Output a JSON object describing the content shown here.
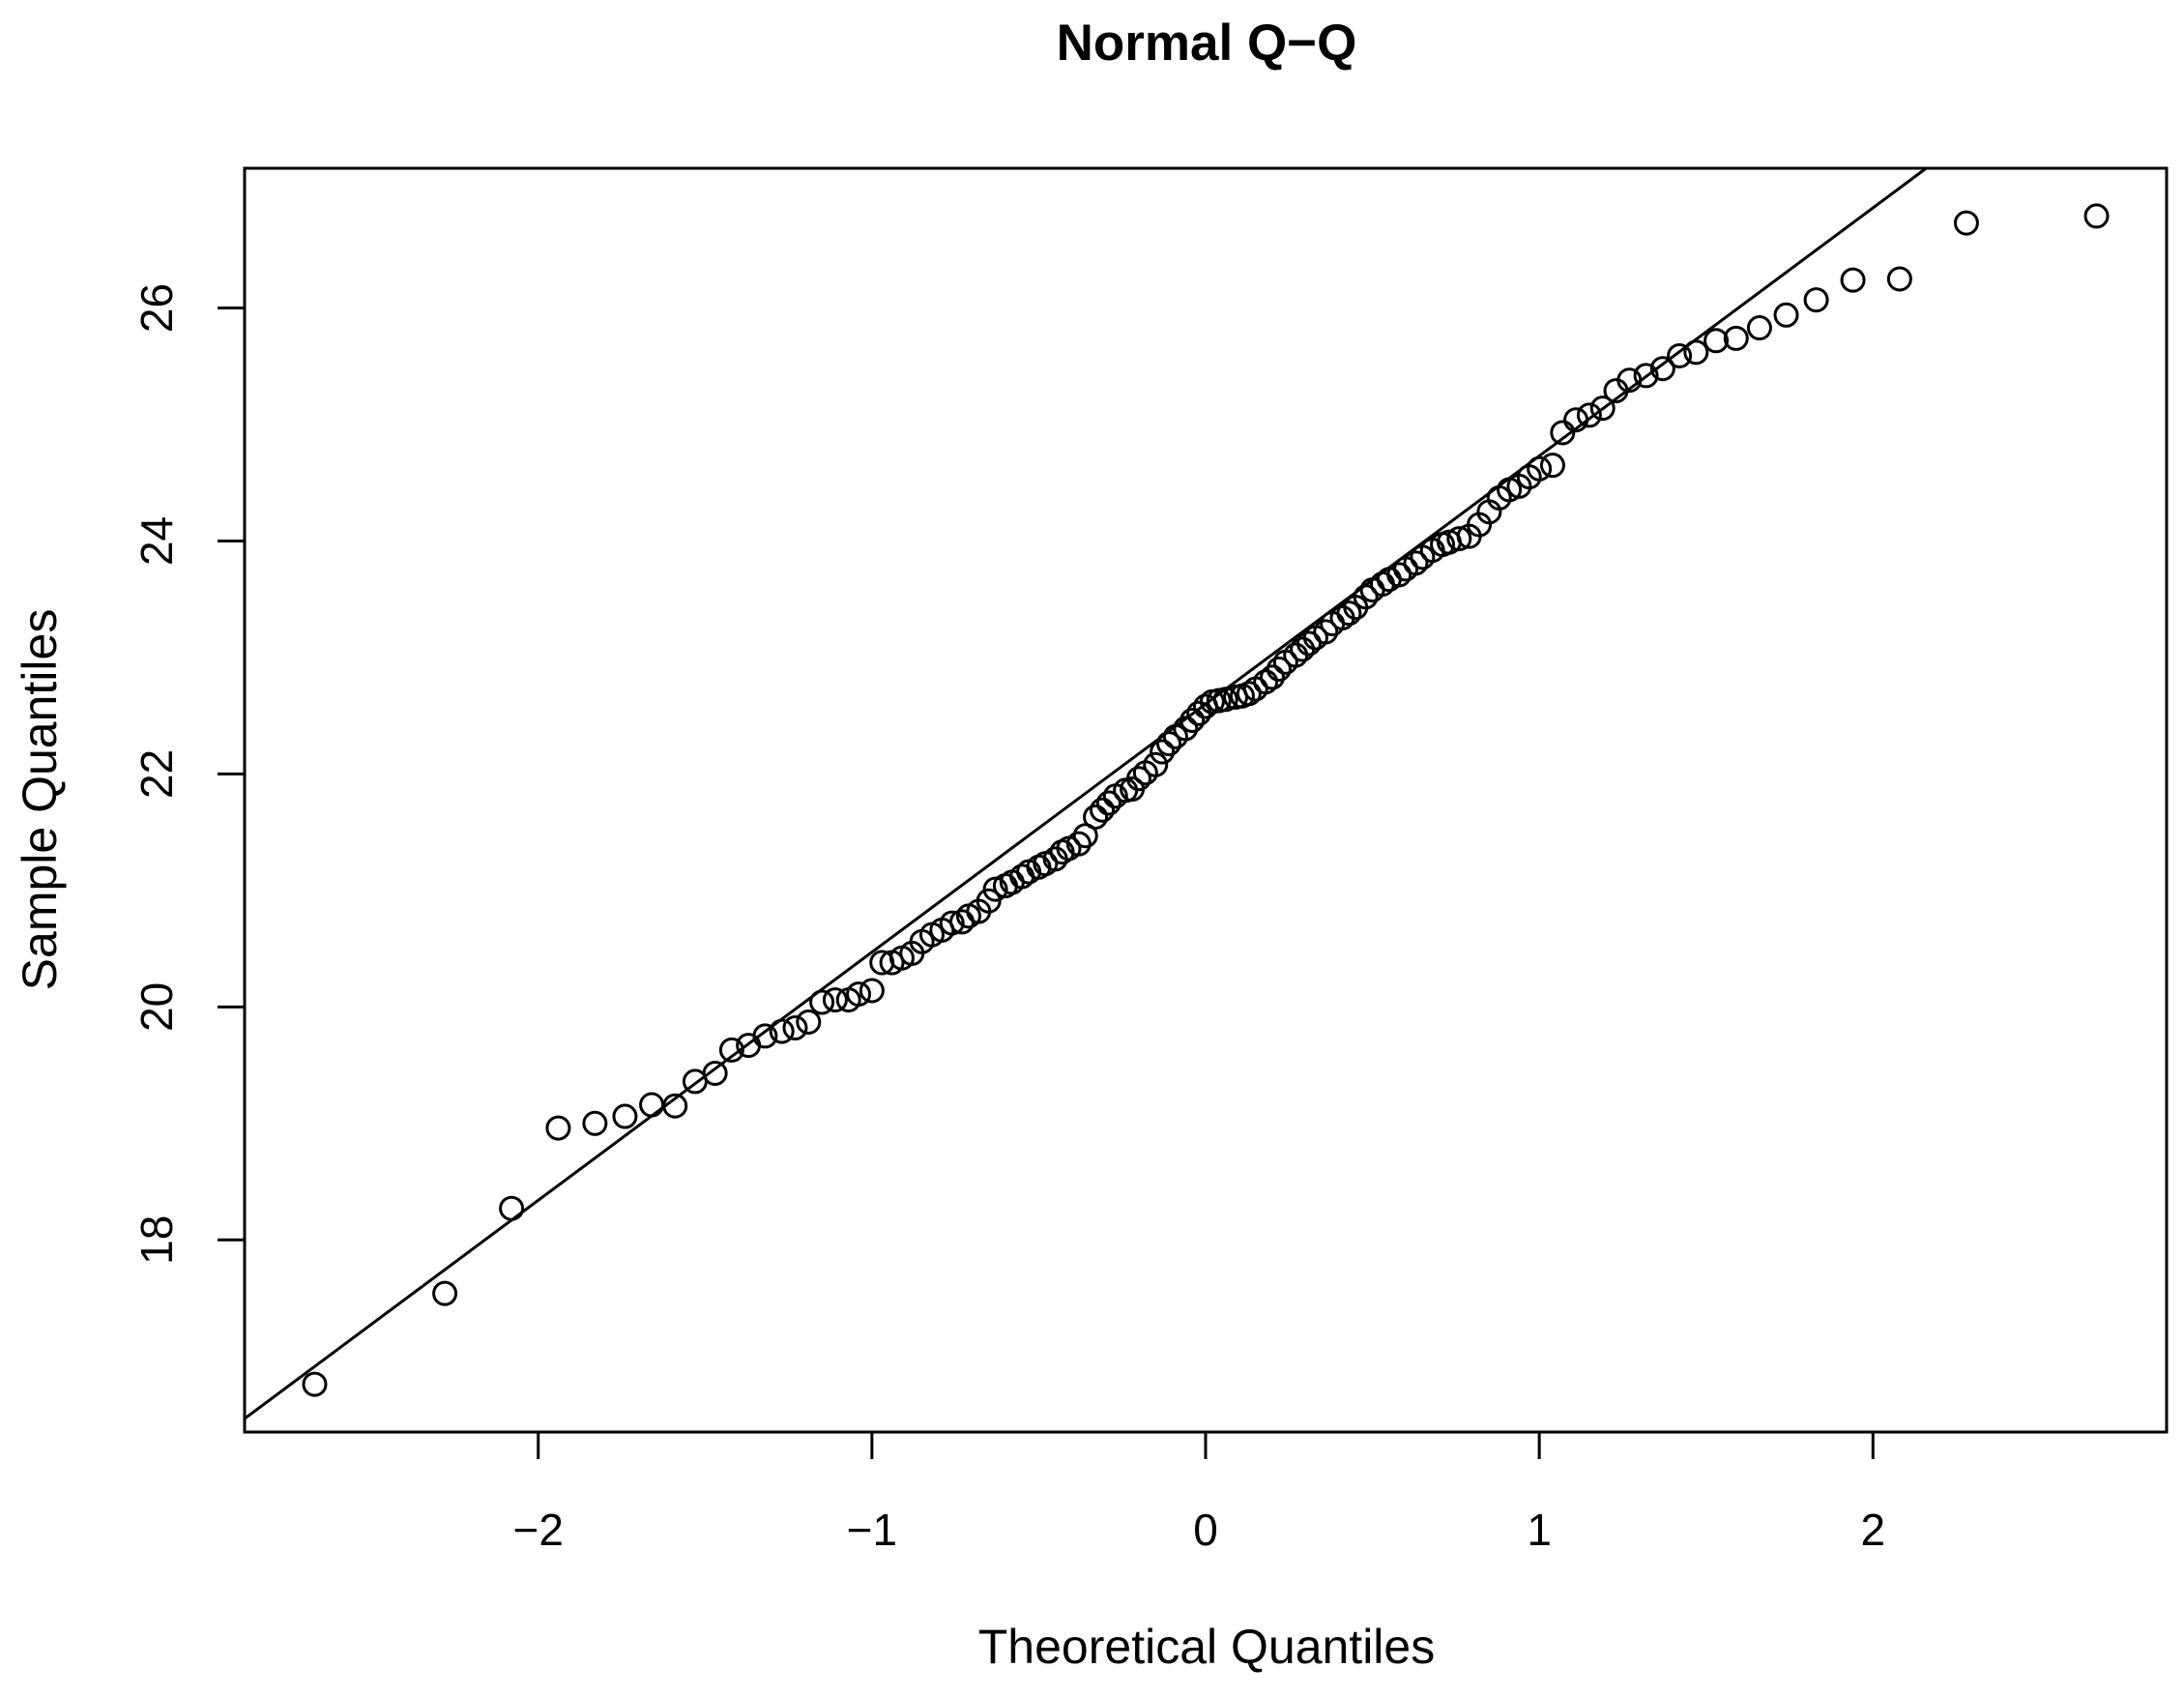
{
  "chart_data": {
    "type": "scatter",
    "title": "Normal Q−Q",
    "xlabel": "Theoretical Quantiles",
    "ylabel": "Sample Quantiles",
    "xlim": [
      -2.88,
      2.88
    ],
    "ylim": [
      16.35,
      27.2
    ],
    "x_ticks": [
      {
        "value": -2,
        "label": "−2"
      },
      {
        "value": -1,
        "label": "−1"
      },
      {
        "value": 0,
        "label": "0"
      },
      {
        "value": 1,
        "label": "1"
      },
      {
        "value": 2,
        "label": "2"
      }
    ],
    "y_ticks": [
      {
        "value": 18,
        "label": "18"
      },
      {
        "value": 20,
        "label": "20"
      },
      {
        "value": 22,
        "label": "22"
      },
      {
        "value": 24,
        "label": "24"
      },
      {
        "value": 26,
        "label": "26"
      }
    ],
    "reference_line": {
      "intercept": 22.6,
      "slope": 2.13
    },
    "series": [
      {
        "marker": "open-circle",
        "points": [
          [
            -2.67,
            16.76
          ],
          [
            -2.28,
            17.54
          ],
          [
            -2.08,
            18.27
          ],
          [
            -1.94,
            18.96
          ],
          [
            -1.83,
            19.0
          ],
          [
            -1.74,
            19.06
          ],
          [
            -1.66,
            19.16
          ],
          [
            -1.59,
            19.15
          ],
          [
            -1.53,
            19.36
          ],
          [
            -1.47,
            19.43
          ],
          [
            -1.42,
            19.63
          ],
          [
            -1.37,
            19.67
          ],
          [
            -1.32,
            19.75
          ],
          [
            -1.27,
            19.79
          ],
          [
            -1.23,
            19.82
          ],
          [
            -1.19,
            19.87
          ],
          [
            -1.15,
            20.04
          ],
          [
            -1.11,
            20.06
          ],
          [
            -1.07,
            20.06
          ],
          [
            -1.04,
            20.11
          ],
          [
            -1.0,
            20.14
          ],
          [
            -0.97,
            20.38
          ],
          [
            -0.94,
            20.38
          ],
          [
            -0.91,
            20.42
          ],
          [
            -0.88,
            20.46
          ],
          [
            -0.85,
            20.56
          ],
          [
            -0.82,
            20.62
          ],
          [
            -0.79,
            20.66
          ],
          [
            -0.76,
            20.72
          ],
          [
            -0.73,
            20.73
          ],
          [
            -0.71,
            20.78
          ],
          [
            -0.68,
            20.82
          ],
          [
            -0.65,
            20.91
          ],
          [
            -0.63,
            21.01
          ],
          [
            -0.6,
            21.04
          ],
          [
            -0.58,
            21.07
          ],
          [
            -0.55,
            21.12
          ],
          [
            -0.53,
            21.16
          ],
          [
            -0.5,
            21.2
          ],
          [
            -0.48,
            21.23
          ],
          [
            -0.45,
            21.27
          ],
          [
            -0.43,
            21.33
          ],
          [
            -0.41,
            21.36
          ],
          [
            -0.38,
            21.4
          ],
          [
            -0.36,
            21.47
          ],
          [
            -0.33,
            21.63
          ],
          [
            -0.31,
            21.69
          ],
          [
            -0.29,
            21.75
          ],
          [
            -0.27,
            21.81
          ],
          [
            -0.24,
            21.86
          ],
          [
            -0.22,
            21.87
          ],
          [
            -0.2,
            21.96
          ],
          [
            -0.18,
            22.01
          ],
          [
            -0.15,
            22.08
          ],
          [
            -0.13,
            22.19
          ],
          [
            -0.11,
            22.26
          ],
          [
            -0.09,
            22.32
          ],
          [
            -0.06,
            22.39
          ],
          [
            -0.04,
            22.46
          ],
          [
            -0.02,
            22.52
          ],
          [
            0.0,
            22.58
          ],
          [
            0.02,
            22.62
          ],
          [
            0.04,
            22.63
          ],
          [
            0.06,
            22.64
          ],
          [
            0.09,
            22.66
          ],
          [
            0.11,
            22.67
          ],
          [
            0.13,
            22.69
          ],
          [
            0.15,
            22.73
          ],
          [
            0.18,
            22.79
          ],
          [
            0.2,
            22.83
          ],
          [
            0.22,
            22.9
          ],
          [
            0.24,
            22.96
          ],
          [
            0.27,
            23.02
          ],
          [
            0.29,
            23.07
          ],
          [
            0.31,
            23.12
          ],
          [
            0.33,
            23.17
          ],
          [
            0.36,
            23.22
          ],
          [
            0.38,
            23.29
          ],
          [
            0.41,
            23.34
          ],
          [
            0.43,
            23.38
          ],
          [
            0.45,
            23.43
          ],
          [
            0.48,
            23.52
          ],
          [
            0.5,
            23.58
          ],
          [
            0.53,
            23.63
          ],
          [
            0.55,
            23.67
          ],
          [
            0.58,
            23.71
          ],
          [
            0.6,
            23.76
          ],
          [
            0.63,
            23.81
          ],
          [
            0.65,
            23.86
          ],
          [
            0.68,
            23.92
          ],
          [
            0.71,
            23.97
          ],
          [
            0.73,
            23.99
          ],
          [
            0.76,
            24.02
          ],
          [
            0.79,
            24.04
          ],
          [
            0.82,
            24.14
          ],
          [
            0.85,
            24.25
          ],
          [
            0.88,
            24.37
          ],
          [
            0.91,
            24.44
          ],
          [
            0.94,
            24.47
          ],
          [
            0.97,
            24.55
          ],
          [
            1.0,
            24.62
          ],
          [
            1.04,
            24.65
          ],
          [
            1.07,
            24.93
          ],
          [
            1.11,
            25.04
          ],
          [
            1.15,
            25.08
          ],
          [
            1.19,
            25.14
          ],
          [
            1.23,
            25.29
          ],
          [
            1.27,
            25.38
          ],
          [
            1.32,
            25.42
          ],
          [
            1.37,
            25.48
          ],
          [
            1.42,
            25.59
          ],
          [
            1.47,
            25.62
          ],
          [
            1.53,
            25.72
          ],
          [
            1.59,
            25.74
          ],
          [
            1.66,
            25.83
          ],
          [
            1.74,
            25.94
          ],
          [
            1.83,
            26.07
          ],
          [
            1.94,
            26.24
          ],
          [
            2.08,
            26.25
          ],
          [
            2.28,
            26.73
          ],
          [
            2.67,
            26.79
          ]
        ]
      }
    ]
  }
}
